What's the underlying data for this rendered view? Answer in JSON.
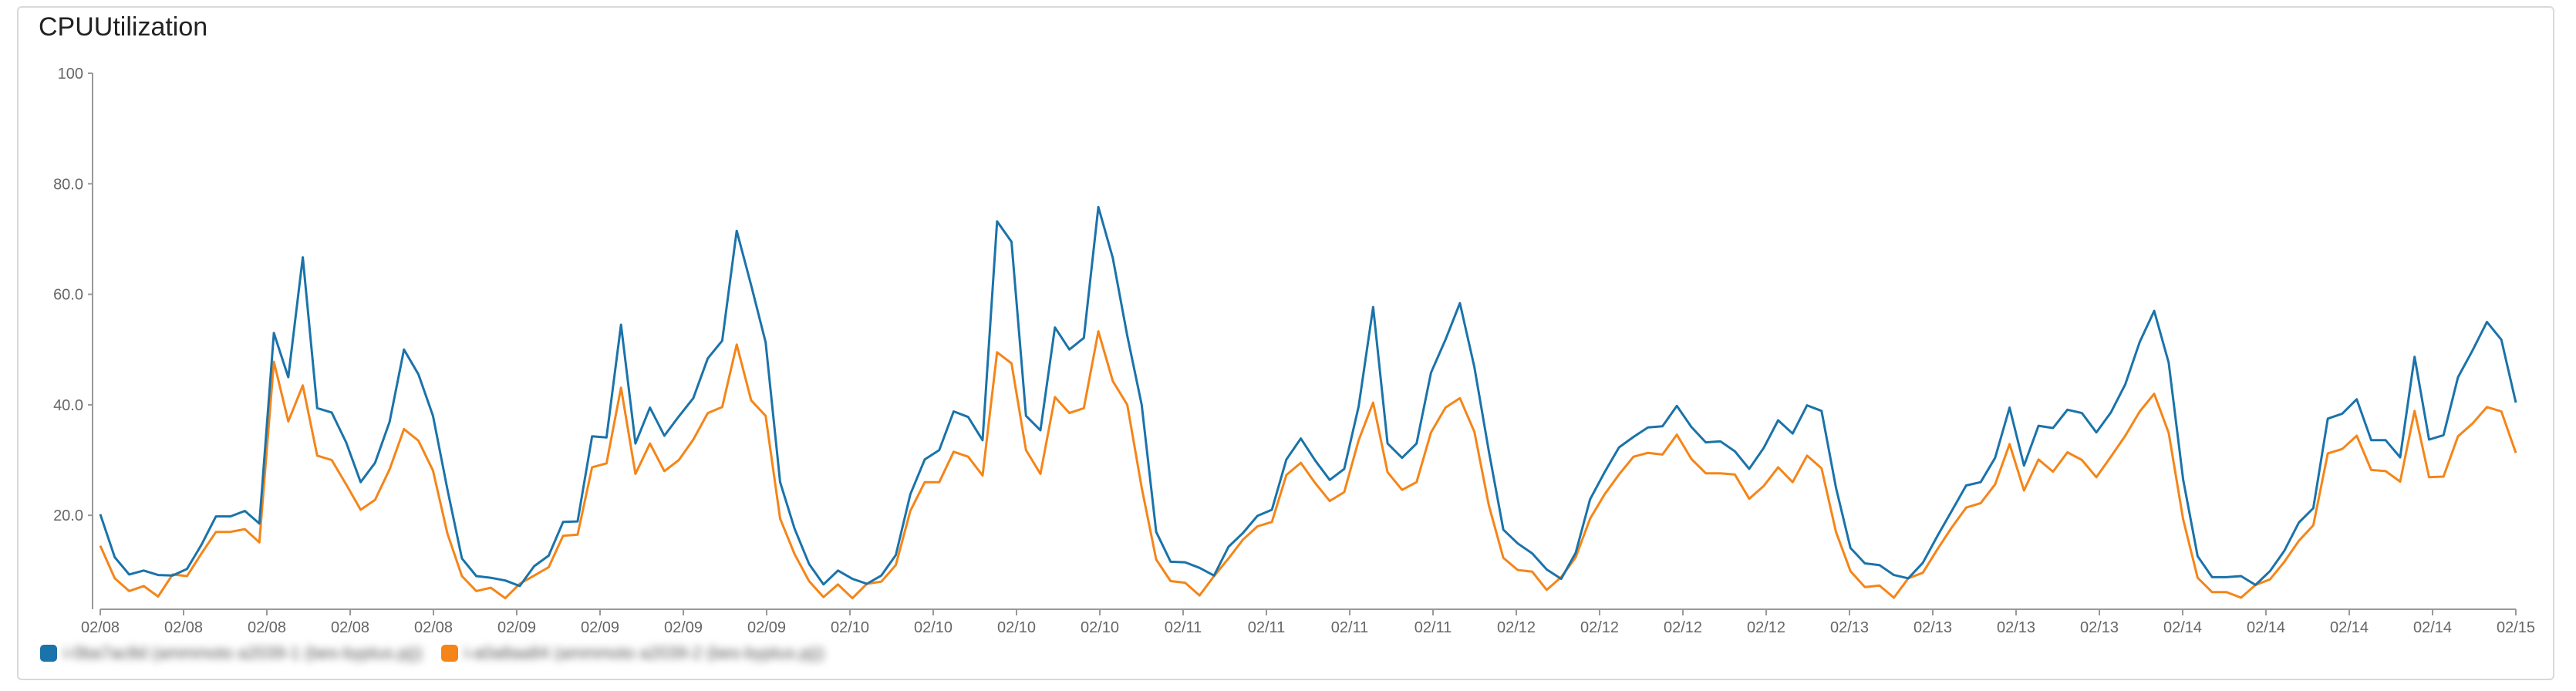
{
  "title": "CPUUtilization",
  "colors": {
    "series1": "#1a73aa",
    "series2": "#f58518",
    "axis": "#999999"
  },
  "chart_data": {
    "type": "line",
    "title": "CPUUtilization",
    "xlabel": "",
    "ylabel": "",
    "ylim": [
      3,
      100
    ],
    "y_ticks": [
      {
        "value": 100,
        "label": "100"
      },
      {
        "value": 80,
        "label": "80.0"
      },
      {
        "value": 60,
        "label": "60.0"
      },
      {
        "value": 40,
        "label": "40.0"
      },
      {
        "value": 20,
        "label": "20.0"
      }
    ],
    "x_tick_labels": [
      "02/08",
      "02/08",
      "02/08",
      "02/08",
      "02/08",
      "02/09",
      "02/09",
      "02/09",
      "02/09",
      "02/10",
      "02/10",
      "02/10",
      "02/10",
      "02/11",
      "02/11",
      "02/11",
      "02/11",
      "02/12",
      "02/12",
      "02/12",
      "02/12",
      "02/13",
      "02/13",
      "02/13",
      "02/13",
      "02/14",
      "02/14",
      "02/14",
      "02/14",
      "02/15"
    ],
    "legend_position": "bottom-left",
    "grid": false,
    "series": [
      {
        "name": "i-0ba7ac8d (ammmoto a2039-1 (bes-byptus.pj))",
        "values": [
          20.2,
          12.4,
          9.3,
          10.0,
          9.2,
          9.1,
          10.3,
          14.7,
          19.8,
          19.8,
          20.8,
          18.5,
          53.0,
          45.0,
          66.7,
          39.4,
          38.6,
          33.2,
          26.0,
          29.5,
          36.9,
          50.0,
          45.5,
          38.0,
          24.7,
          12.2,
          9.0,
          8.7,
          8.2,
          7.2,
          10.8,
          12.7,
          18.8,
          18.9,
          34.3,
          34.1,
          54.5,
          33.0,
          39.5,
          34.4,
          37.9,
          41.2,
          48.4,
          51.6,
          71.5,
          61.6,
          51.3,
          26.0,
          17.6,
          11.2,
          7.5,
          10.0,
          8.5,
          7.6,
          9.1,
          12.8,
          23.8,
          30.1,
          31.8,
          38.8,
          37.8,
          33.6,
          73.2,
          69.5,
          38.0,
          35.4,
          54.0,
          50.0,
          52.1,
          75.8,
          66.6,
          52.5,
          40.0,
          17.0,
          11.6,
          11.5,
          10.5,
          9.1,
          14.3,
          16.8,
          19.9,
          21.0,
          30.1,
          33.9,
          29.9,
          26.4,
          28.4,
          39.7,
          57.7,
          33.0,
          30.4,
          33.0,
          45.8,
          51.8,
          58.4,
          46.8,
          31.6,
          17.4,
          14.9,
          13.1,
          10.2,
          8.5,
          13.2,
          22.9,
          27.8,
          32.3,
          34.2,
          35.9,
          36.1,
          39.8,
          36.0,
          33.2,
          33.4,
          31.6,
          28.4,
          32.2,
          37.2,
          34.8,
          39.9,
          38.9,
          25.0,
          14.1,
          11.3,
          11.0,
          9.2,
          8.6,
          11.4,
          16.2,
          20.8,
          25.4,
          26.0,
          30.4,
          39.5,
          29.0,
          36.2,
          35.8,
          39.1,
          38.5,
          35.0,
          38.6,
          43.7,
          51.4,
          57.0,
          47.6,
          26.5,
          12.6,
          8.8,
          8.8,
          9.0,
          7.4,
          9.9,
          13.6,
          18.7,
          21.3,
          37.5,
          38.4,
          41.0,
          33.6,
          33.6,
          30.5,
          48.7,
          33.7,
          34.5,
          45.0,
          49.8,
          55.0,
          51.8,
          40.4
        ]
      },
      {
        "name": "i-a0a8aa84 (ammmoto a2039-2 (bes-byptus.pj))",
        "values": [
          14.5,
          8.6,
          6.3,
          7.2,
          5.3,
          9.3,
          9.0,
          13.1,
          17.0,
          17.0,
          17.5,
          15.1,
          47.8,
          37.0,
          43.5,
          30.8,
          30.0,
          25.6,
          21.0,
          22.8,
          28.3,
          35.6,
          33.5,
          28.1,
          16.7,
          9.0,
          6.3,
          6.9,
          5.0,
          7.6,
          9.1,
          10.6,
          16.3,
          16.5,
          28.7,
          29.4,
          43.1,
          27.5,
          33.0,
          28.0,
          30.0,
          33.7,
          38.5,
          39.6,
          50.9,
          40.8,
          38.0,
          19.4,
          13.0,
          8.1,
          5.2,
          7.5,
          5.0,
          7.6,
          8.0,
          11.0,
          20.8,
          26.0,
          26.0,
          31.5,
          30.6,
          27.2,
          49.5,
          47.5,
          31.8,
          27.5,
          41.4,
          38.5,
          39.4,
          53.3,
          44.3,
          40.0,
          25.0,
          12.0,
          8.1,
          7.8,
          5.5,
          9.0,
          12.2,
          15.6,
          18.0,
          18.8,
          27.3,
          29.5,
          25.8,
          22.6,
          24.2,
          33.6,
          40.4,
          27.8,
          24.6,
          26.0,
          35.0,
          39.5,
          41.2,
          35.1,
          21.8,
          12.3,
          10.1,
          9.8,
          6.5,
          8.8,
          12.4,
          19.4,
          23.8,
          27.4,
          30.6,
          31.3,
          31.0,
          34.6,
          30.2,
          27.6,
          27.6,
          27.4,
          23.0,
          25.3,
          28.7,
          26.0,
          30.8,
          28.5,
          17.0,
          9.9,
          7.0,
          7.3,
          5.1,
          8.6,
          9.6,
          13.8,
          17.8,
          21.4,
          22.2,
          25.6,
          32.9,
          24.5,
          30.1,
          27.9,
          31.4,
          30.0,
          26.9,
          30.6,
          34.4,
          38.8,
          42.0,
          34.9,
          19.3,
          8.7,
          6.1,
          6.1,
          5.1,
          7.4,
          8.4,
          11.6,
          15.4,
          18.2,
          31.2,
          32.0,
          34.4,
          28.2,
          28.0,
          26.1,
          38.9,
          26.9,
          27.0,
          34.3,
          36.6,
          39.6,
          38.8,
          31.3
        ]
      }
    ]
  }
}
